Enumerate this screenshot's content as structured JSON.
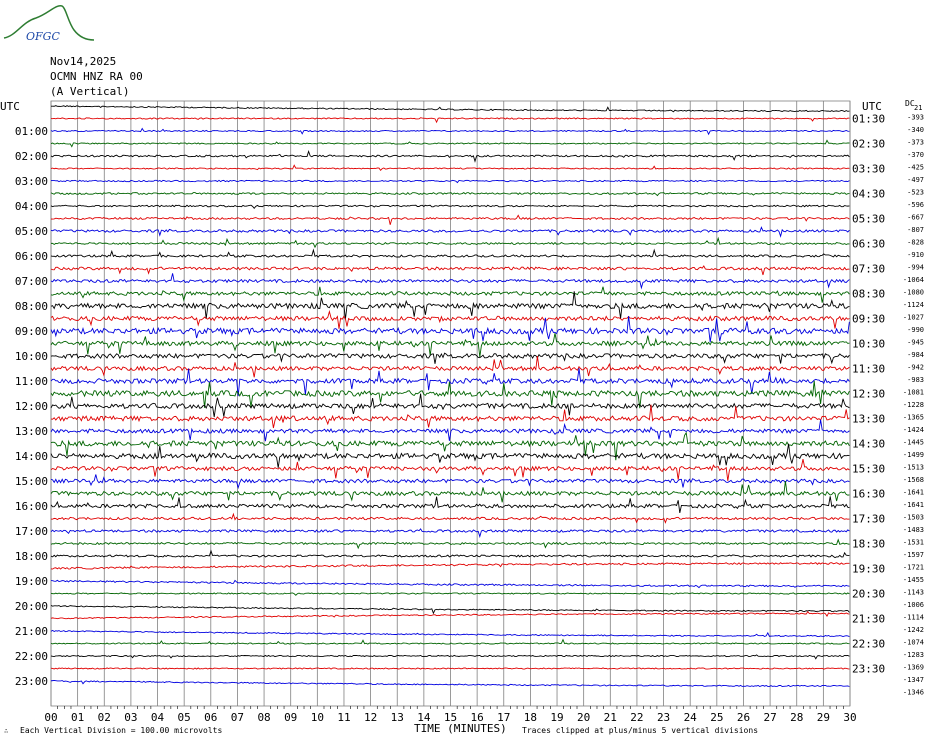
{
  "logo": {
    "text": "OFGC"
  },
  "header": {
    "date": "Nov14,2025",
    "station": "OCMN HNZ RA 00",
    "component": "(A Vertical)"
  },
  "axis": {
    "left_unit": "UTC",
    "right_unit": "UTC",
    "dc_label": "DC",
    "dc_sub": "21"
  },
  "footer": {
    "scale": "Each Vertical Division =  100.00 microvolts",
    "xlabel": "TIME (MINUTES)",
    "clip": "Traces clipped at plus/minus 5 vertical divisions"
  },
  "colors": {
    "trace_cycle": [
      "#000000",
      "#e00000",
      "#0000e0",
      "#006400"
    ],
    "grid": "#808080"
  },
  "chart_data": {
    "type": "line",
    "title": "",
    "xlabel": "TIME (MINUTES)",
    "x_ticks": [
      "00",
      "01",
      "02",
      "03",
      "04",
      "05",
      "06",
      "07",
      "08",
      "09",
      "10",
      "11",
      "12",
      "13",
      "14",
      "15",
      "16",
      "17",
      "18",
      "19",
      "20",
      "21",
      "22",
      "23",
      "24",
      "25",
      "26",
      "27",
      "28",
      "29",
      "30"
    ],
    "xlim": [
      0,
      30
    ],
    "left_hour_labels": [
      "UTC",
      "01:00",
      "02:00",
      "03:00",
      "04:00",
      "05:00",
      "06:00",
      "07:00",
      "08:00",
      "09:00",
      "10:00",
      "11:00",
      "12:00",
      "13:00",
      "14:00",
      "15:00",
      "16:00",
      "17:00",
      "18:00",
      "19:00",
      "20:00",
      "21:00",
      "22:00",
      "23:00"
    ],
    "right_hour_labels": [
      "UTC",
      "01:30",
      "02:30",
      "03:30",
      "04:30",
      "05:30",
      "06:30",
      "07:30",
      "08:30",
      "09:30",
      "10:30",
      "11:30",
      "12:30",
      "13:30",
      "14:30",
      "15:30",
      "16:30",
      "17:30",
      "18:30",
      "19:30",
      "20:30",
      "21:30",
      "22:30",
      "23:30"
    ],
    "dc_offsets": [
      -393,
      -340,
      -373,
      -370,
      -425,
      -497,
      -523,
      -596,
      -667,
      -807,
      -828,
      -910,
      -994,
      -1064,
      -1080,
      -1124,
      -1027,
      -990,
      -945,
      -984,
      -942,
      -983,
      -1081,
      -1228,
      -1365,
      -1424,
      -1445,
      -1499,
      -1513,
      -1568,
      -1641,
      -1641,
      -1503,
      -1483,
      -1531,
      -1597,
      -1721,
      -1455,
      -1143,
      -1006,
      -1114,
      -1242,
      -1074,
      -1283,
      -1369,
      -1347,
      -1346
    ],
    "trace_count": 47,
    "activity": [
      0.6,
      0.6,
      0.6,
      0.6,
      0.9,
      0.6,
      0.7,
      0.9,
      0.8,
      1.0,
      1.2,
      1.0,
      1.1,
      1.4,
      1.5,
      1.8,
      2.6,
      2.2,
      2.8,
      2.2,
      2.2,
      2.0,
      2.4,
      2.8,
      2.4,
      2.4,
      2.0,
      2.6,
      2.6,
      2.0,
      1.8,
      2.0,
      1.8,
      1.2,
      1.2,
      1.0,
      1.0,
      0.9,
      0.8,
      0.6,
      0.6,
      0.6,
      0.6,
      0.6,
      0.6,
      0.6,
      0.6
    ],
    "drift_traces": [
      0,
      37,
      38,
      40,
      41,
      42,
      46
    ],
    "units": "Each Vertical Division =  100.00 microvolts"
  }
}
